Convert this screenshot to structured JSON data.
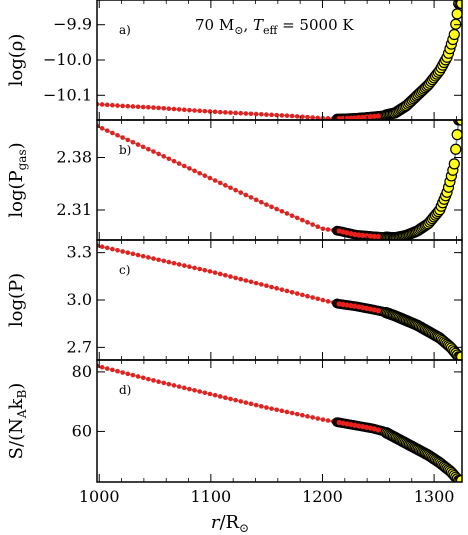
{
  "chart_data": {
    "type": "scatter",
    "annotation": {
      "mass": "70 M",
      "sun": "⊙",
      "teff_label": "T",
      "teff_sub": "eff",
      "teff_value": " = 5000 K"
    },
    "x_axis": {
      "label_main": "r",
      "label_rest": "/R",
      "label_sun": "⊙",
      "range": [
        998,
        1325
      ],
      "ticks": [
        1000,
        1100,
        1200,
        1300
      ],
      "tick_labels": [
        "1000",
        "1100",
        "1200",
        "1300"
      ]
    },
    "colors": {
      "line": "#6e8a9a",
      "red": "#e8201c",
      "dark": "#3a0a0a",
      "yellow": "#ffff1a",
      "edge": "#000000"
    },
    "panels": [
      {
        "tag": "a)",
        "ylabel": "log(ρ)",
        "ylim": [
          -10.17,
          -9.83
        ],
        "yticks": [
          -10.1,
          -10.0,
          -9.9
        ],
        "ytick_labels": [
          "−10.1",
          "−10.0",
          "−9.9"
        ],
        "curve": [
          [
            998,
            -10.125
          ],
          [
            1020,
            -10.13
          ],
          [
            1050,
            -10.135
          ],
          [
            1080,
            -10.142
          ],
          [
            1110,
            -10.148
          ],
          [
            1140,
            -10.153
          ],
          [
            1170,
            -10.158
          ],
          [
            1200,
            -10.165
          ],
          [
            1215,
            -10.166
          ],
          [
            1230,
            -10.164
          ],
          [
            1245,
            -10.16
          ],
          [
            1255,
            -10.157
          ],
          [
            1265,
            -10.15
          ],
          [
            1275,
            -10.13
          ],
          [
            1285,
            -10.1
          ],
          [
            1295,
            -10.07
          ],
          [
            1305,
            -10.03
          ],
          [
            1312,
            -9.99
          ],
          [
            1318,
            -9.93
          ],
          [
            1322,
            -9.84
          ]
        ]
      },
      {
        "tag": "b)",
        "ylabel_main": "log(P",
        "ylabel_sub": "gas",
        "ylabel_end": ")",
        "ylim": [
          2.27,
          2.43
        ],
        "yticks": [
          2.31,
          2.38
        ],
        "ytick_labels": [
          "2.31",
          "2.38"
        ],
        "curve": [
          [
            998,
            2.422
          ],
          [
            1050,
            2.387
          ],
          [
            1100,
            2.352
          ],
          [
            1150,
            2.317
          ],
          [
            1200,
            2.285
          ],
          [
            1215,
            2.282
          ],
          [
            1230,
            2.277
          ],
          [
            1245,
            2.275
          ],
          [
            1255,
            2.274
          ],
          [
            1265,
            2.273
          ],
          [
            1275,
            2.276
          ],
          [
            1285,
            2.282
          ],
          [
            1295,
            2.292
          ],
          [
            1305,
            2.31
          ],
          [
            1312,
            2.335
          ],
          [
            1318,
            2.37
          ],
          [
            1322,
            2.43
          ]
        ]
      },
      {
        "tag": "c)",
        "ylabel": "log(P)",
        "ylim": [
          2.62,
          3.38
        ],
        "yticks": [
          2.7,
          3.0,
          3.3
        ],
        "ytick_labels": [
          "2.7",
          "3.0",
          "3.3"
        ],
        "curve": [
          [
            998,
            3.345
          ],
          [
            1050,
            3.26
          ],
          [
            1100,
            3.18
          ],
          [
            1150,
            3.09
          ],
          [
            1200,
            3.0
          ],
          [
            1215,
            2.975
          ],
          [
            1230,
            2.96
          ],
          [
            1245,
            2.94
          ],
          [
            1255,
            2.925
          ],
          [
            1265,
            2.9
          ],
          [
            1275,
            2.87
          ],
          [
            1285,
            2.84
          ],
          [
            1295,
            2.8
          ],
          [
            1305,
            2.76
          ],
          [
            1315,
            2.7
          ],
          [
            1322,
            2.64
          ]
        ]
      },
      {
        "tag": "d)",
        "ylabel_main": "S/(N",
        "ylabel_sub1": "A",
        "ylabel_mid": "k",
        "ylabel_sub2": "B",
        "ylabel_end": ")",
        "ylim": [
          43,
          84
        ],
        "yticks": [
          60,
          80
        ],
        "ytick_labels": [
          "60",
          "80"
        ],
        "curve": [
          [
            998,
            82
          ],
          [
            1050,
            77
          ],
          [
            1100,
            72.5
          ],
          [
            1150,
            68
          ],
          [
            1200,
            64
          ],
          [
            1215,
            63
          ],
          [
            1230,
            62
          ],
          [
            1245,
            61
          ],
          [
            1255,
            60
          ],
          [
            1265,
            58
          ],
          [
            1275,
            56
          ],
          [
            1285,
            54
          ],
          [
            1295,
            52
          ],
          [
            1305,
            49.5
          ],
          [
            1315,
            46.5
          ],
          [
            1322,
            43.5
          ]
        ]
      }
    ],
    "segments": {
      "red_end": 1215,
      "dark_start": 1213,
      "dark_end": 1257,
      "yellow_start": 1257
    }
  }
}
